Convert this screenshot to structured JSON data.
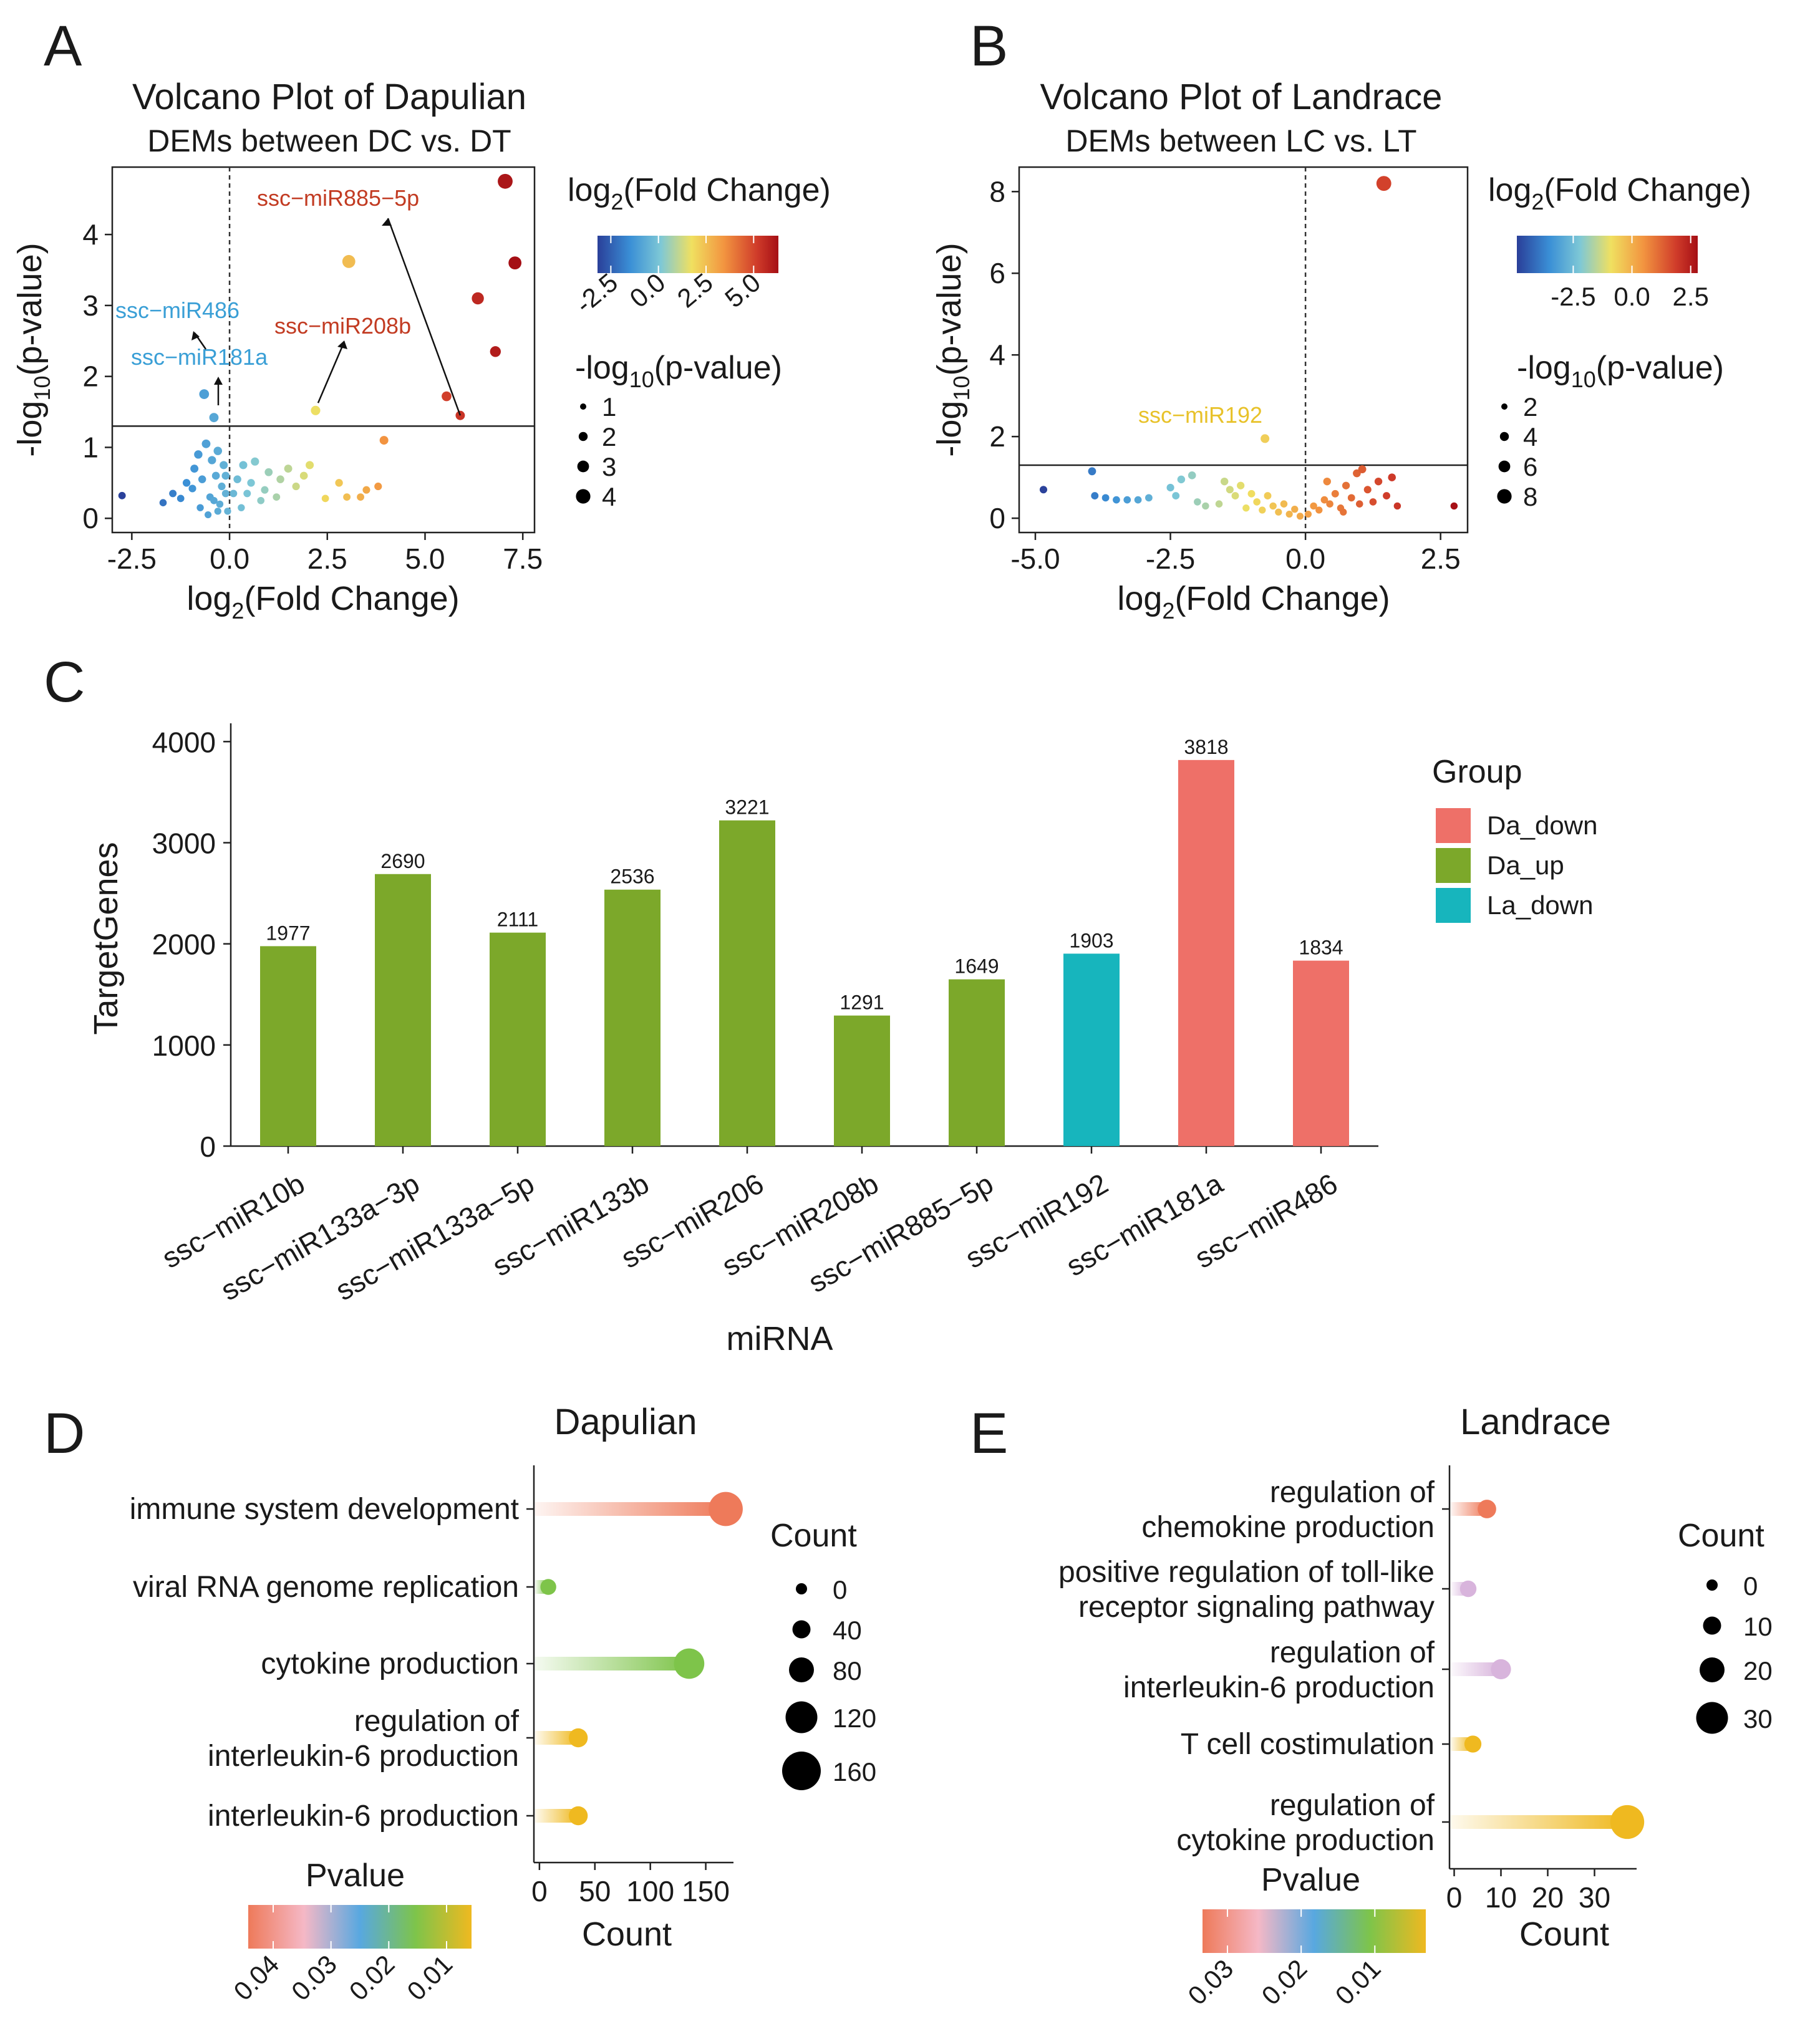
{
  "panels": {
    "A": {
      "letter": "A",
      "title": "Volcano Plot of Dapulian",
      "subtitle": "DEMs between DC vs. DT",
      "xlabel": "log2(Fold Change)",
      "ylabel": "-log10(p-value)",
      "color_legend_title": "log2(Fold Change)",
      "color_ticks": [
        "-2.5",
        "0.0",
        "2.5",
        "5.0"
      ],
      "size_legend_title": "-log10(p-value)",
      "size_ticks": [
        "1",
        "2",
        "3",
        "4"
      ]
    },
    "B": {
      "letter": "B",
      "title": "Volcano Plot of Landrace",
      "subtitle": "DEMs between LC vs. LT",
      "xlabel": "log2(Fold Change)",
      "ylabel": "-log10(p-value)",
      "color_legend_title": "log2(Fold Change)",
      "color_ticks": [
        "-2.5",
        "0.0",
        "2.5"
      ],
      "size_legend_title": "-log10(p-value)",
      "size_ticks": [
        "2",
        "4",
        "6",
        "8"
      ]
    },
    "C": {
      "letter": "C",
      "xlabel": "miRNA",
      "ylabel": "TargetGenes",
      "legend_title": "Group"
    },
    "D": {
      "letter": "D",
      "title": "Dapulian",
      "xlabel": "Count",
      "size_legend_title": "Count",
      "size_ticks": [
        "0",
        "40",
        "80",
        "120",
        "160"
      ],
      "color_legend_title": "Pvalue",
      "color_ticks": [
        "0.04",
        "0.03",
        "0.02",
        "0.01"
      ]
    },
    "E": {
      "letter": "E",
      "title": "Landrace",
      "xlabel": "Count",
      "size_legend_title": "Count",
      "size_ticks": [
        "0",
        "10",
        "20",
        "30"
      ],
      "color_legend_title": "Pvalue",
      "color_ticks": [
        "0.03",
        "0.02",
        "0.01"
      ]
    }
  },
  "chart_data": [
    {
      "id": "A",
      "type": "scatter",
      "title": "Volcano Plot of Dapulian",
      "subtitle": "DEMs between DC vs. DT",
      "xlabel": "log2(Fold Change)",
      "ylabel": "-log10(p-value)",
      "xlim": [
        -3,
        7.8
      ],
      "ylim": [
        -0.2,
        4.95
      ],
      "xticks": [
        -2.5,
        0,
        2.5,
        5,
        7.5
      ],
      "xtick_labels": [
        "-2.5",
        "0.0",
        "2.5",
        "5.0",
        "7.5"
      ],
      "yticks": [
        0,
        1,
        2,
        3,
        4
      ],
      "threshold_y": 1.3,
      "vline_x": 0,
      "color_domain": [
        -2.8,
        7.3
      ],
      "size_domain": [
        0,
        4.8
      ],
      "points": [
        [
          7.05,
          4.75
        ],
        [
          7.3,
          3.6
        ],
        [
          3.05,
          3.62
        ],
        [
          6.35,
          3.1
        ],
        [
          6.8,
          2.35
        ],
        [
          5.55,
          1.72
        ],
        [
          5.9,
          1.45
        ],
        [
          2.2,
          1.52
        ],
        [
          -0.65,
          1.75
        ],
        [
          -0.4,
          1.42
        ],
        [
          3.95,
          1.1
        ],
        [
          3.8,
          0.45
        ],
        [
          3.5,
          0.4
        ],
        [
          3.35,
          0.3
        ],
        [
          2.8,
          0.5
        ],
        [
          3.0,
          0.3
        ],
        [
          2.45,
          0.28
        ],
        [
          2.05,
          0.75
        ],
        [
          1.9,
          0.6
        ],
        [
          1.7,
          0.45
        ],
        [
          1.5,
          0.7
        ],
        [
          1.3,
          0.55
        ],
        [
          1.2,
          0.3
        ],
        [
          1.0,
          0.65
        ],
        [
          0.9,
          0.4
        ],
        [
          0.8,
          0.25
        ],
        [
          0.65,
          0.8
        ],
        [
          0.55,
          0.5
        ],
        [
          0.45,
          0.35
        ],
        [
          0.35,
          0.75
        ],
        [
          0.3,
          0.15
        ],
        [
          0.2,
          0.55
        ],
        [
          0.1,
          0.35
        ],
        [
          -2.75,
          0.32
        ],
        [
          -1.7,
          0.22
        ],
        [
          -1.45,
          0.35
        ],
        [
          -1.25,
          0.28
        ],
        [
          -1.1,
          0.5
        ],
        [
          -0.95,
          0.42
        ],
        [
          -0.9,
          0.7
        ],
        [
          -0.8,
          0.9
        ],
        [
          -0.7,
          0.55
        ],
        [
          -0.6,
          1.05
        ],
        [
          -0.5,
          0.3
        ],
        [
          -0.45,
          0.82
        ],
        [
          -0.35,
          0.6
        ],
        [
          -0.3,
          0.95
        ],
        [
          -0.25,
          0.2
        ],
        [
          -0.2,
          0.45
        ],
        [
          -0.15,
          0.75
        ],
        [
          -0.1,
          0.35
        ],
        [
          -0.05,
          0.1
        ],
        [
          -0.55,
          0.05
        ],
        [
          -0.75,
          0.15
        ],
        [
          -0.4,
          0.25
        ],
        [
          -0.3,
          0.1
        ],
        [
          -0.1,
          0.6
        ]
      ],
      "labels": [
        {
          "text": "ssc−miR885−5p",
          "color": "#c23b22",
          "point": [
            5.9,
            1.45
          ]
        },
        {
          "text": "ssc−miR208b",
          "color": "#c23b22",
          "point": [
            2.2,
            1.52
          ]
        },
        {
          "text": "ssc−miR486",
          "color": "#3a9fd6",
          "point": [
            -0.65,
            1.75
          ]
        },
        {
          "text": "ssc−miR181a",
          "color": "#3a9fd6",
          "point": [
            -0.4,
            1.42
          ]
        }
      ]
    },
    {
      "id": "B",
      "type": "scatter",
      "title": "Volcano Plot of Landrace",
      "subtitle": "DEMs between LC vs. LT",
      "xlabel": "log2(Fold Change)",
      "ylabel": "-log10(p-value)",
      "xlim": [
        -5.3,
        3.0
      ],
      "ylim": [
        -0.35,
        8.6
      ],
      "xticks": [
        -5,
        -2.5,
        0,
        2.5
      ],
      "xtick_labels": [
        "-5.0",
        "-2.5",
        "0.0",
        "2.5"
      ],
      "yticks": [
        0,
        2,
        4,
        6,
        8
      ],
      "threshold_y": 1.3,
      "vline_x": 0,
      "color_domain": [
        -4.9,
        2.8
      ],
      "size_domain": [
        0,
        8.3
      ],
      "points": [
        [
          1.45,
          8.2
        ],
        [
          -0.75,
          1.95
        ],
        [
          2.75,
          0.3
        ],
        [
          -4.85,
          0.7
        ],
        [
          -3.95,
          1.15
        ],
        [
          -3.9,
          0.55
        ],
        [
          -3.7,
          0.5
        ],
        [
          -3.5,
          0.45
        ],
        [
          -3.3,
          0.45
        ],
        [
          -3.1,
          0.45
        ],
        [
          -2.9,
          0.5
        ],
        [
          -2.5,
          0.75
        ],
        [
          -2.4,
          0.55
        ],
        [
          -2.3,
          0.95
        ],
        [
          -2.1,
          1.05
        ],
        [
          -2.0,
          0.4
        ],
        [
          -1.85,
          0.3
        ],
        [
          -1.6,
          0.35
        ],
        [
          -1.5,
          0.9
        ],
        [
          -1.4,
          0.7
        ],
        [
          -1.3,
          0.55
        ],
        [
          -1.2,
          0.8
        ],
        [
          -1.1,
          0.25
        ],
        [
          -1.0,
          0.6
        ],
        [
          -0.9,
          0.4
        ],
        [
          -0.8,
          0.2
        ],
        [
          -0.7,
          0.55
        ],
        [
          -0.6,
          0.3
        ],
        [
          -0.5,
          0.15
        ],
        [
          -0.4,
          0.35
        ],
        [
          -0.3,
          0.1
        ],
        [
          -0.2,
          0.22
        ],
        [
          -0.1,
          0.05
        ],
        [
          0.05,
          0.1
        ],
        [
          0.15,
          0.3
        ],
        [
          0.25,
          0.2
        ],
        [
          0.35,
          0.45
        ],
        [
          0.45,
          0.35
        ],
        [
          0.55,
          0.6
        ],
        [
          0.65,
          0.25
        ],
        [
          0.75,
          0.8
        ],
        [
          0.85,
          0.5
        ],
        [
          0.95,
          1.1
        ],
        [
          1.05,
          1.2
        ],
        [
          1.15,
          0.7
        ],
        [
          1.25,
          0.4
        ],
        [
          1.35,
          0.9
        ],
        [
          1.5,
          0.55
        ],
        [
          1.6,
          1.0
        ],
        [
          1.7,
          0.3
        ],
        [
          0.4,
          0.9
        ],
        [
          0.7,
          0.15
        ],
        [
          1.0,
          0.35
        ]
      ],
      "labels": [
        {
          "text": "ssc−miR192",
          "color": "#e8c22a",
          "point": [
            -0.75,
            1.95
          ]
        }
      ]
    },
    {
      "id": "C",
      "type": "bar",
      "xlabel": "miRNA",
      "ylabel": "TargetGenes",
      "ylim": [
        0,
        4150
      ],
      "yticks": [
        0,
        1000,
        2000,
        3000,
        4000
      ],
      "categories": [
        "ssc−miR10b",
        "ssc−miR133a−3p",
        "ssc−miR133a−5p",
        "ssc−miR133b",
        "ssc−miR206",
        "ssc−miR208b",
        "ssc−miR885−5p",
        "ssc−miR192",
        "ssc−miR181a",
        "ssc−miR486"
      ],
      "values": [
        1977,
        2690,
        2111,
        2536,
        3221,
        1291,
        1649,
        1903,
        3818,
        1834
      ],
      "groups": [
        "Da_up",
        "Da_up",
        "Da_up",
        "Da_up",
        "Da_up",
        "Da_up",
        "Da_up",
        "La_down",
        "Da_down",
        "Da_down"
      ],
      "legend": [
        {
          "name": "Da_down",
          "color": "#ee7068"
        },
        {
          "name": "Da_up",
          "color": "#7ca82a"
        },
        {
          "name": "La_down",
          "color": "#17b5bd"
        }
      ]
    },
    {
      "id": "D",
      "type": "lollipop",
      "title": "Dapulian",
      "xlabel": "Count",
      "xlim": [
        -5,
        175
      ],
      "xticks": [
        0,
        50,
        100,
        150
      ],
      "terms": [
        {
          "label": [
            "immune system development"
          ],
          "count": 168,
          "color": "#ee7a5a"
        },
        {
          "label": [
            "viral RNA genome replication"
          ],
          "count": 8,
          "color": "#7ec44a"
        },
        {
          "label": [
            "cytokine production"
          ],
          "count": 135,
          "color": "#7ec44a"
        },
        {
          "label": [
            "regulation of",
            "interleukin-6 production"
          ],
          "count": 35,
          "color": "#efb920"
        },
        {
          "label": [
            "interleukin-6 production"
          ],
          "count": 35,
          "color": "#efb920"
        }
      ]
    },
    {
      "id": "E",
      "type": "lollipop",
      "title": "Landrace",
      "xlabel": "Count",
      "xlim": [
        -1,
        39
      ],
      "xticks": [
        0,
        10,
        20,
        30
      ],
      "terms": [
        {
          "label": [
            "regulation of",
            "chemokine production"
          ],
          "count": 7,
          "color": "#ee7a5a"
        },
        {
          "label": [
            "positive regulation of toll-like",
            "receptor signaling pathway"
          ],
          "count": 3,
          "color": "#d8b4dc"
        },
        {
          "label": [
            "regulation of",
            "interleukin-6 production"
          ],
          "count": 10,
          "color": "#d8b4dc"
        },
        {
          "label": [
            "T cell costimulation"
          ],
          "count": 4,
          "color": "#efb920"
        },
        {
          "label": [
            "regulation of",
            "cytokine production"
          ],
          "count": 37,
          "color": "#efb920"
        }
      ]
    }
  ],
  "colors": {
    "diverging": [
      "#2a3f99",
      "#3a8fd6",
      "#7ec8d6",
      "#f0e060",
      "#f29440",
      "#d03c2a",
      "#a50f15"
    ],
    "pvalue_gradient": [
      "#ee7a5a",
      "#f5b8c6",
      "#58a8e0",
      "#7ec44a",
      "#efb920"
    ]
  }
}
